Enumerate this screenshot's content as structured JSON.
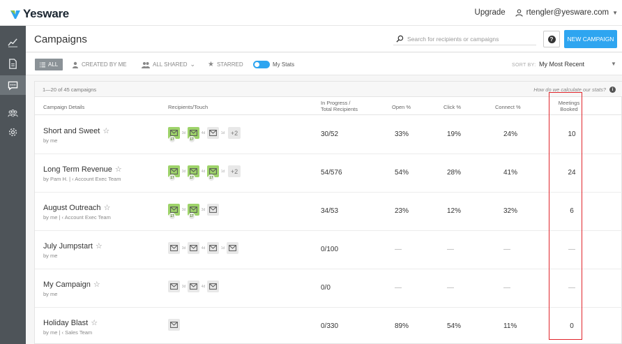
{
  "app": {
    "logo_text": "Yesware",
    "upgrade": "Upgrade",
    "user_email": "rtengler@yesware.com"
  },
  "sidebar": {
    "items": [
      {
        "icon": "trend-chart-icon"
      },
      {
        "icon": "document-icon"
      },
      {
        "icon": "campaign-chat-icon",
        "active": true
      },
      {
        "icon": "team-icon"
      },
      {
        "icon": "gear-icon"
      }
    ]
  },
  "header": {
    "title": "Campaigns",
    "search_placeholder": "Search for recipients or campaigns",
    "help_label": "?",
    "new_campaign": "NEW CAMPAIGN"
  },
  "filters": {
    "all": "ALL",
    "created_by_me": "CREATED BY ME",
    "all_shared": "ALL SHARED",
    "starred": "STARRED",
    "my_stats": "My Stats",
    "sort_label": "SORT BY:",
    "sort_value": "My Most Recent"
  },
  "table": {
    "count_text": "1—20 of 45 campaigns",
    "stats_link": "How do we calculate our stats?",
    "columns": {
      "details": "Campaign Details",
      "recipients": "Recipients/Touch",
      "progress_1": "In Progress /",
      "progress_2": "Total Recipients",
      "open": "Open %",
      "click": "Click %",
      "connect": "Connect %",
      "meetings_1": "Meetings",
      "meetings_2": "Booked"
    },
    "rows": [
      {
        "title": "Short and Sweet",
        "sub": "by me",
        "progress": "30/52",
        "open": "33%",
        "click": "19%",
        "connect": "24%",
        "meetings": "10",
        "touches": [
          {
            "g": true,
            "badge": "17"
          },
          {
            "gap": "3d"
          },
          {
            "g": true,
            "badge": "17"
          },
          {
            "gap": "4d"
          },
          {
            "g": false
          },
          {
            "gap": "1d"
          }
        ],
        "more": "+2"
      },
      {
        "title": "Long Term Revenue",
        "sub": "by Pam H. | ‹ Account Exec Team",
        "progress": "54/576",
        "open": "54%",
        "click": "28%",
        "connect": "41%",
        "meetings": "24",
        "touches": [
          {
            "g": true,
            "badge": "17"
          },
          {
            "gap": "3d"
          },
          {
            "g": true,
            "badge": "17"
          },
          {
            "gap": "4d"
          },
          {
            "g": true,
            "badge": "17"
          },
          {
            "gap": "1d"
          }
        ],
        "more": "+2"
      },
      {
        "title": "August Outreach",
        "sub": "by me | ‹ Account Exec Team",
        "progress": "34/53",
        "open": "23%",
        "click": "12%",
        "connect": "32%",
        "meetings": "6",
        "touches": [
          {
            "g": true,
            "badge": "17"
          },
          {
            "gap": "3d"
          },
          {
            "g": true,
            "badge": "17"
          },
          {
            "gap": "3d"
          },
          {
            "g": false
          }
        ],
        "more": ""
      },
      {
        "title": "July Jumpstart",
        "sub": "by me",
        "progress": "0/100",
        "open": "—",
        "click": "—",
        "connect": "—",
        "meetings": "—",
        "touches": [
          {
            "g": false
          },
          {
            "gap": "3d"
          },
          {
            "g": false
          },
          {
            "gap": "4d"
          },
          {
            "g": false
          },
          {
            "gap": "1d"
          },
          {
            "g": false
          }
        ],
        "more": ""
      },
      {
        "title": "My Campaign",
        "sub": "by me",
        "progress": "0/0",
        "open": "—",
        "click": "—",
        "connect": "—",
        "meetings": "—",
        "touches": [
          {
            "g": false
          },
          {
            "gap": "3d"
          },
          {
            "g": false
          },
          {
            "gap": "4d"
          },
          {
            "g": false
          }
        ],
        "more": ""
      },
      {
        "title": "Holiday Blast",
        "sub": "by me | ‹ Sales Team",
        "progress": "0/330",
        "open": "89%",
        "click": "54%",
        "connect": "11%",
        "meetings": "0",
        "touches": [
          {
            "g": false
          }
        ],
        "more": ""
      }
    ]
  },
  "colors": {
    "accent": "#2ea5f0",
    "sidebar": "#4e5459",
    "touch_done": "#9ed36a",
    "highlight": "#e0242a"
  }
}
